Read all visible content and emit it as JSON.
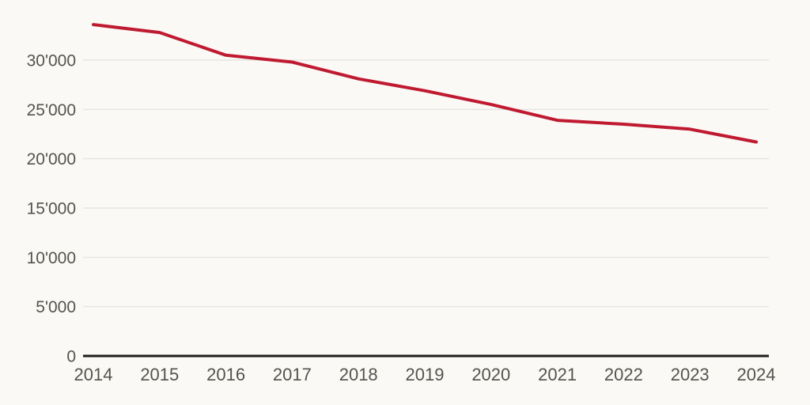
{
  "chart_data": {
    "type": "line",
    "x": [
      2014,
      2015,
      2016,
      2017,
      2018,
      2019,
      2020,
      2021,
      2022,
      2023,
      2024
    ],
    "x_tick_labels": [
      "2014",
      "2015",
      "2016",
      "2017",
      "2018",
      "2019",
      "2020",
      "2021",
      "2022",
      "2023",
      "2024"
    ],
    "series": [
      {
        "color": "#c01a31",
        "values": [
          33600,
          32800,
          30500,
          29800,
          28100,
          26900,
          25500,
          23900,
          23500,
          23000,
          21700
        ]
      }
    ],
    "y_ticks": [
      0,
      5000,
      10000,
      15000,
      20000,
      25000,
      30000
    ],
    "y_tick_labels": [
      "0",
      "5'000",
      "10'000",
      "15'000",
      "20'000",
      "25'000",
      "30'000"
    ],
    "ylim": [
      0,
      34800
    ],
    "title": "",
    "xlabel": "",
    "ylabel": "",
    "grid": "horizontal",
    "legend": "none"
  },
  "colors": {
    "background": "#faf9f6",
    "gridline": "#e7e5e1",
    "axis": "#1d1d1b",
    "tick_text": "#56534d",
    "line": "#c01a31"
  }
}
